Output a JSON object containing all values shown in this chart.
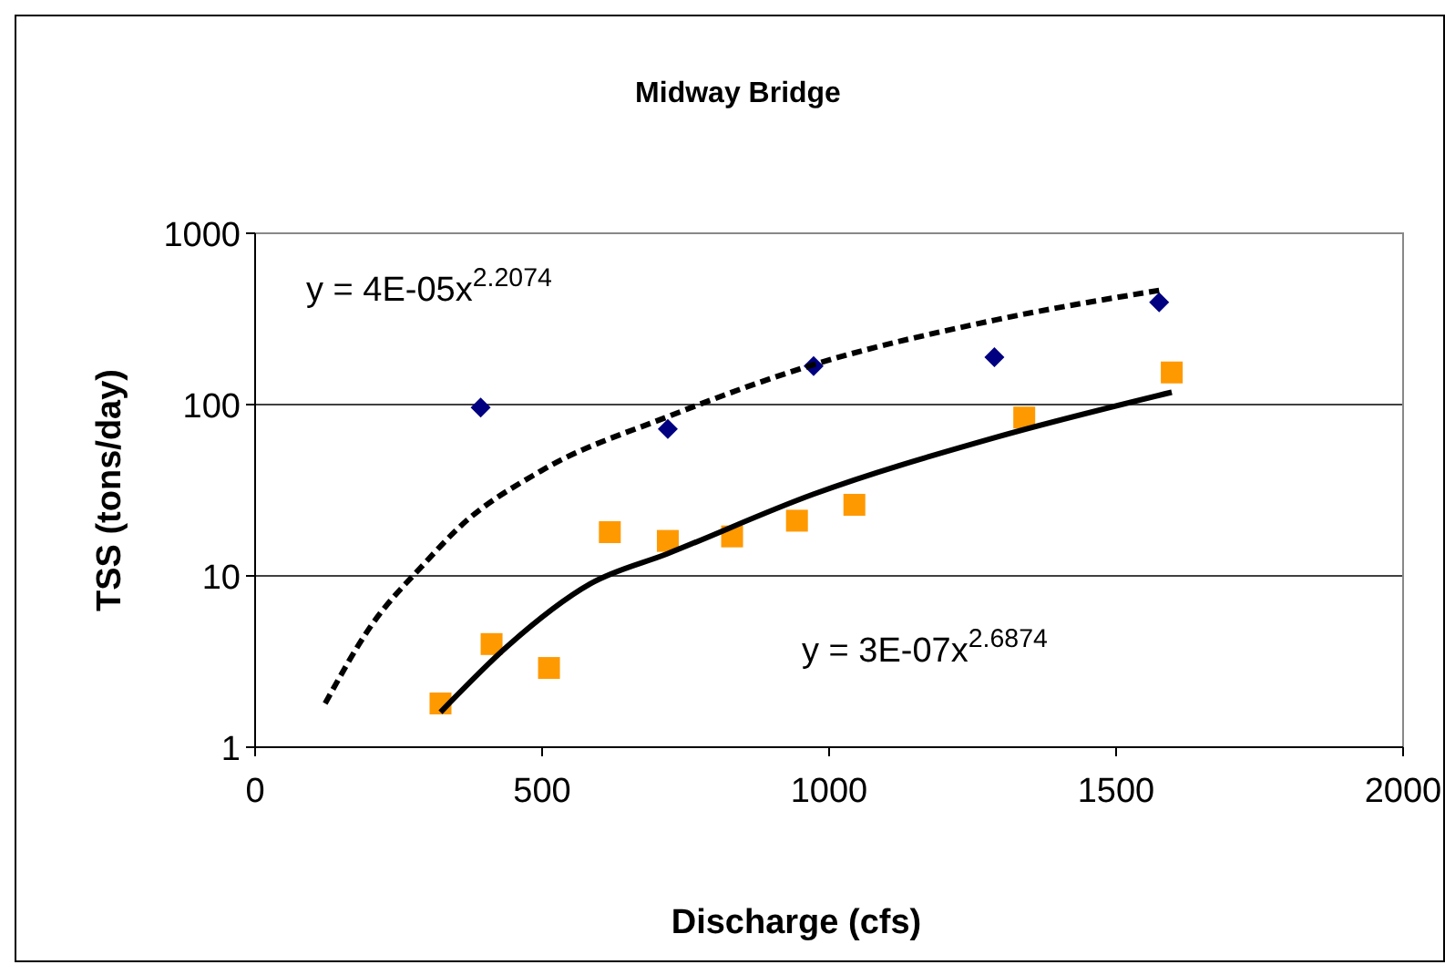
{
  "chart_data": {
    "type": "scatter",
    "title": "Midway Bridge",
    "xlabel": "Discharge (cfs)",
    "ylabel": "TSS (tons/day)",
    "xlim": [
      0,
      2000
    ],
    "xticks": [
      0,
      500,
      1000,
      1500,
      2000
    ],
    "ylim": [
      1,
      1000
    ],
    "yticks": [
      1,
      10,
      100,
      1000
    ],
    "log": "y",
    "grid": "y",
    "annotations": [
      "y = 4E-05x$^{2.2074}$",
      "y = 3E-07x$^{2.6874}$"
    ],
    "series": [
      {
        "color": "#000080",
        "marker": "diamond",
        "x": [
          393,
          719,
          973,
          1288,
          1575
        ],
        "values": [
          96,
          72,
          168,
          189,
          395
        ]
      },
      {
        "color": "#ff9900",
        "marker": "square",
        "x": [
          323,
          412,
          512,
          618,
          719,
          831,
          944,
          1044,
          1340,
          1597
        ],
        "values": [
          1.8,
          4,
          2.9,
          18,
          16,
          17,
          21,
          26,
          84,
          154
        ]
      },
      {
        "type": "line",
        "color": "#000000",
        "marker": "none",
        "line_style": "dashed",
        "x": [
          122,
          200,
          297,
          354,
          498,
          719,
          973,
          1288,
          1575
        ],
        "values": [
          1.8,
          5,
          12,
          19,
          41,
          85,
          171,
          311,
          464
        ]
      },
      {
        "type": "line",
        "color": "#000000",
        "marker": "none",
        "line_style": "solid",
        "x": [
          323,
          440,
          584,
          719,
          973,
          1288,
          1597
        ],
        "values": [
          1.6,
          3.9,
          9,
          13.5,
          30,
          64,
          118
        ]
      }
    ]
  }
}
